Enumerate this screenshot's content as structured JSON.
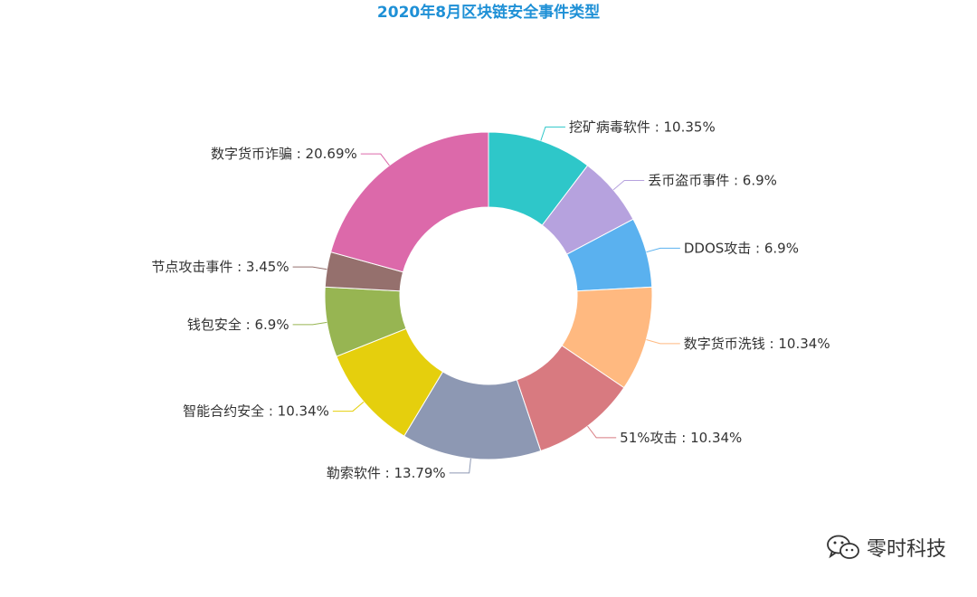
{
  "chart_data": {
    "type": "pie",
    "donut": true,
    "title": "2020年8月区块链安全事件类型",
    "slices": [
      {
        "label": "挖矿病毒软件",
        "value": 10.35,
        "value_text": "10.35%",
        "color": "#2ec7c9"
      },
      {
        "label": "丢币盗币事件",
        "value": 6.9,
        "value_text": "6.9%",
        "color": "#b6a2de"
      },
      {
        "label": "DDOS攻击",
        "value": 6.9,
        "value_text": "6.9%",
        "color": "#5ab1ef"
      },
      {
        "label": "数字货币洗钱",
        "value": 10.34,
        "value_text": "10.34%",
        "color": "#ffb980"
      },
      {
        "label": "51%攻击",
        "value": 10.34,
        "value_text": "10.34%",
        "color": "#d87a80"
      },
      {
        "label": "勒索软件",
        "value": 13.79,
        "value_text": "13.79%",
        "color": "#8d98b3"
      },
      {
        "label": "智能合约安全",
        "value": 10.34,
        "value_text": "10.34%",
        "color": "#e5cf0d"
      },
      {
        "label": "钱包安全",
        "value": 6.9,
        "value_text": "6.9%",
        "color": "#97b552"
      },
      {
        "label": "节点攻击事件",
        "value": 3.45,
        "value_text": "3.45%",
        "color": "#95706d"
      },
      {
        "label": "数字货币诈骗",
        "value": 20.69,
        "value_text": "20.69%",
        "color": "#dc69aa"
      }
    ],
    "label_separator": " : ",
    "start": "12 o'clock",
    "direction": "clockwise"
  },
  "title_color": "#1e90d6",
  "watermark": {
    "text": "零时科技",
    "icon": "wechat-icon"
  }
}
